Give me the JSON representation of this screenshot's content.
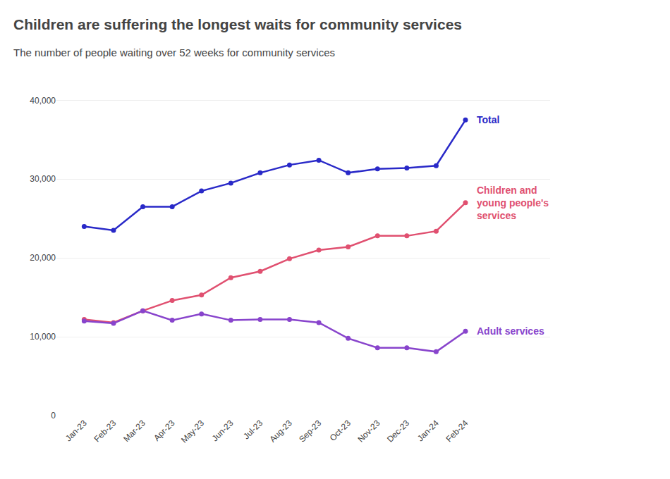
{
  "chart_data": {
    "type": "line",
    "title": "Children are suffering the longest waits for community services",
    "subtitle": "The number of people waiting over 52 weeks for community services",
    "categories": [
      "Jan-23",
      "Feb-23",
      "Mar-23",
      "Apr-23",
      "May-23",
      "Jun-23",
      "Jul-23",
      "Aug-23",
      "Sep-23",
      "Oct-23",
      "Nov-23",
      "Dec-23",
      "Jan-24",
      "Feb-24"
    ],
    "series": [
      {
        "name": "Total",
        "color": "#2929c8",
        "marker": "circle",
        "values": [
          24000,
          23500,
          26500,
          26500,
          28500,
          29500,
          30800,
          31800,
          32400,
          30800,
          31300,
          31400,
          31700,
          37500
        ]
      },
      {
        "name": "Children and\nyoung people's\nservices",
        "color": "#e05070",
        "marker": "circle",
        "values": [
          12200,
          11800,
          13300,
          14600,
          15300,
          17500,
          18300,
          19900,
          21000,
          21400,
          22800,
          22800,
          23400,
          27000
        ]
      },
      {
        "name": "Adult services",
        "color": "#8844cc",
        "marker": "circle",
        "values": [
          12000,
          11700,
          13300,
          12100,
          12900,
          12100,
          12200,
          12200,
          11800,
          9800,
          8600,
          8600,
          8100,
          10700
        ]
      }
    ],
    "ylim": [
      0,
      42000
    ],
    "yticks": [
      0,
      {
        "value": 10000,
        "label": "10,000"
      },
      {
        "value": 20000,
        "label": "20,000"
      },
      {
        "value": 30000,
        "label": "30,000"
      },
      {
        "value": 40000,
        "label": "40,000"
      }
    ],
    "grid": true
  }
}
